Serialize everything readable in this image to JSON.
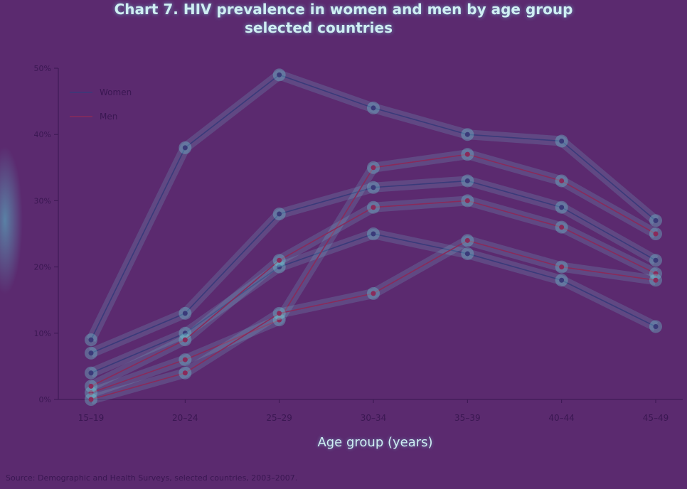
{
  "title_line1": "Chart 7. HIV prevalence in women and men by age group",
  "title_line2": "selected countries",
  "source_text": "Source: Demographic and Health Surveys, selected countries, 2003–2007.",
  "chart_data": {
    "type": "line",
    "title": "HIV prevalence in women and men by age group",
    "xlabel": "Age group (years)",
    "ylabel": "",
    "categories": [
      "15–19",
      "20–24",
      "25–29",
      "30–34",
      "35–39",
      "40–44",
      "45–49"
    ],
    "ylim": [
      0,
      50
    ],
    "yticks": [
      "0%",
      "10%",
      "20%",
      "30%",
      "40%",
      "50%"
    ],
    "legend": {
      "placement": "top-left",
      "entries": [
        "Women",
        "Men"
      ]
    },
    "series": [
      {
        "name": "Women",
        "group": "Women",
        "color": "#3a3a7a",
        "values": [
          9,
          38,
          49,
          44,
          40,
          39,
          27
        ]
      },
      {
        "name": "Women",
        "group": "Women",
        "color": "#3a3a7a",
        "values": [
          7,
          13,
          28,
          32,
          33,
          29,
          21
        ]
      },
      {
        "name": "Women",
        "group": "Women",
        "color": "#3a3a7a",
        "values": [
          4,
          10,
          20,
          25,
          22,
          18,
          11
        ]
      },
      {
        "name": "Men",
        "group": "Men",
        "color": "#8a2a5a",
        "values": [
          1,
          6,
          12,
          35,
          37,
          33,
          25
        ]
      },
      {
        "name": "Men",
        "group": "Men",
        "color": "#8a2a5a",
        "values": [
          2,
          9,
          21,
          29,
          30,
          26,
          19
        ]
      },
      {
        "name": "Men",
        "group": "Men",
        "color": "#8a2a5a",
        "values": [
          0,
          4,
          13,
          16,
          24,
          20,
          18
        ]
      }
    ]
  }
}
